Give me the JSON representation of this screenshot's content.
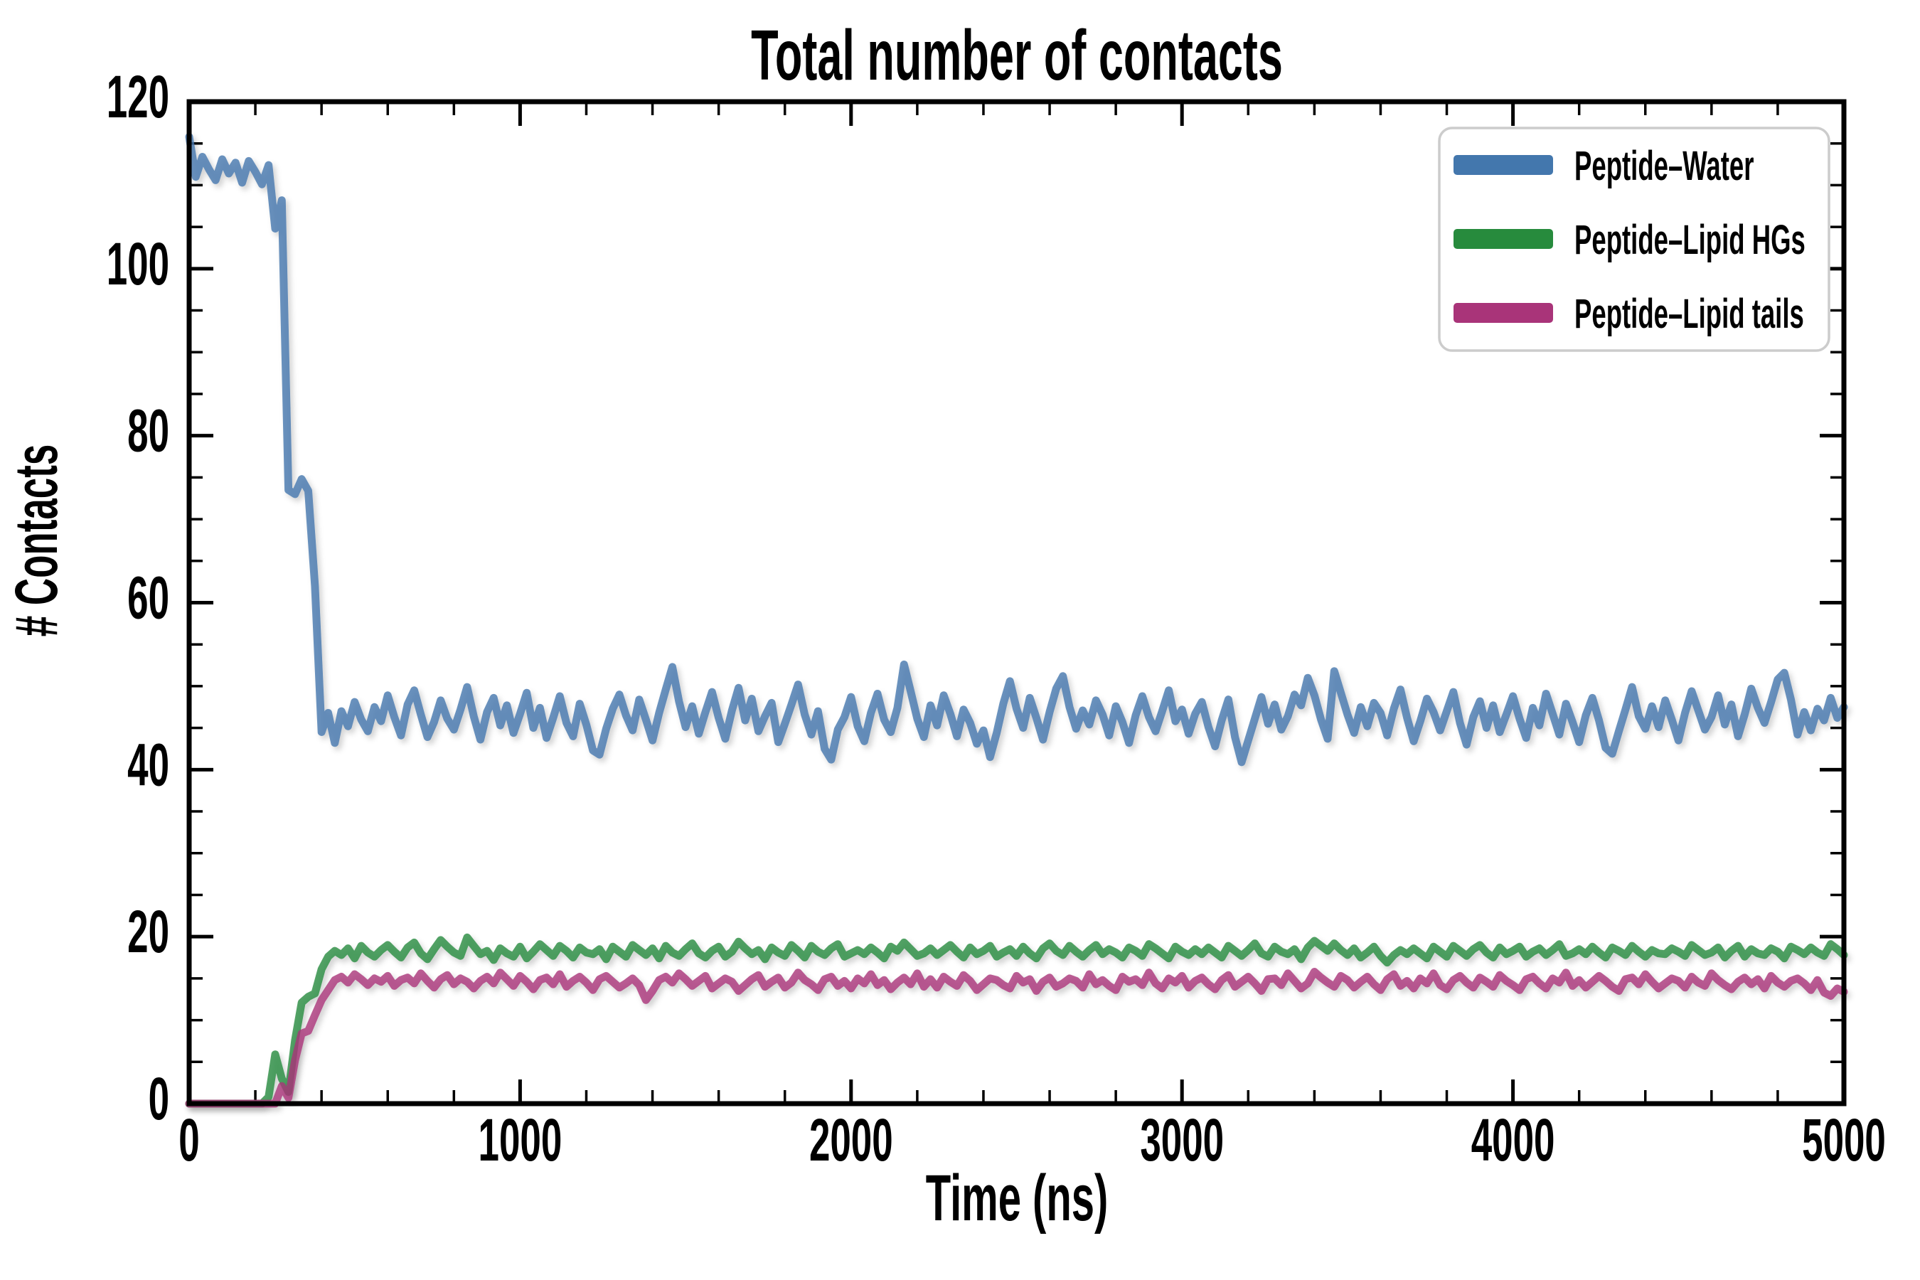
{
  "figure": {
    "title": "Total number of contacts",
    "xlabel": "Time (ns)",
    "ylabel": "# Contacts"
  },
  "chart_data": {
    "type": "line",
    "title": "Total number of contacts",
    "xlabel": "Time (ns)",
    "ylabel": "# Contacts",
    "xlim": [
      0,
      5000
    ],
    "ylim": [
      0,
      120
    ],
    "x_major_ticks": [
      0,
      1000,
      2000,
      3000,
      4000,
      5000
    ],
    "x_minor_step": 200,
    "y_major_ticks": [
      0,
      20,
      40,
      60,
      80,
      100,
      120
    ],
    "y_minor_step": 5,
    "grid": false,
    "legend_position": "upper right",
    "axis_color": "#000000",
    "background": "#ffffff",
    "x_start": 0,
    "x_step": 20,
    "series": [
      {
        "name": "Peptide–Water",
        "color": "#4377ad",
        "values": [
          115.8,
          111.0,
          113.4,
          111.9,
          110.6,
          113.1,
          111.4,
          112.7,
          110.3,
          112.9,
          111.6,
          110.1,
          112.4,
          104.8,
          108.2,
          73.5,
          73.0,
          74.8,
          73.4,
          62.0,
          44.5,
          46.8,
          43.2,
          47.0,
          45.2,
          48.1,
          46.0,
          44.6,
          47.5,
          45.8,
          48.9,
          46.3,
          44.1,
          47.8,
          49.5,
          46.6,
          43.9,
          45.7,
          48.3,
          46.1,
          44.8,
          47.2,
          49.9,
          46.4,
          43.6,
          46.9,
          48.6,
          45.3,
          47.7,
          44.4,
          46.7,
          49.2,
          45.0,
          47.4,
          43.8,
          46.2,
          48.8,
          45.6,
          44.0,
          47.9,
          45.4,
          42.3,
          41.8,
          44.9,
          47.3,
          49.0,
          46.5,
          44.7,
          48.4,
          46.0,
          43.5,
          46.8,
          49.6,
          52.3,
          48.2,
          45.1,
          47.6,
          44.3,
          46.9,
          49.3,
          46.2,
          43.7,
          47.1,
          49.8,
          45.9,
          48.5,
          44.6,
          46.4,
          48.0,
          43.3,
          45.5,
          47.8,
          50.2,
          46.6,
          44.2,
          47.0,
          42.5,
          41.2,
          44.8,
          46.3,
          48.7,
          45.2,
          43.4,
          46.8,
          49.1,
          46.0,
          44.5,
          47.4,
          52.6,
          49.4,
          46.1,
          43.9,
          47.7,
          45.3,
          48.9,
          46.7,
          44.0,
          47.2,
          45.6,
          43.1,
          44.7,
          41.5,
          44.4,
          47.9,
          50.6,
          47.3,
          45.0,
          48.6,
          46.2,
          43.6,
          46.9,
          49.7,
          51.2,
          47.5,
          44.9,
          47.1,
          45.4,
          48.3,
          46.6,
          44.1,
          47.6,
          45.7,
          43.2,
          46.5,
          48.8,
          46.3,
          44.6,
          47.0,
          49.5,
          45.8,
          47.2,
          44.3,
          46.7,
          48.1,
          45.1,
          42.8,
          45.9,
          48.4,
          43.9,
          40.9,
          43.5,
          46.1,
          48.7,
          45.5,
          47.8,
          44.8,
          46.4,
          49.0,
          47.7,
          51.0,
          48.9,
          46.0,
          43.7,
          51.8,
          49.2,
          46.6,
          44.4,
          47.5,
          45.2,
          48.0,
          46.8,
          44.1,
          47.3,
          49.6,
          46.2,
          43.4,
          45.8,
          48.5,
          46.9,
          44.7,
          47.0,
          49.3,
          45.6,
          43.0,
          46.3,
          48.2,
          45.0,
          47.7,
          44.5,
          46.6,
          48.8,
          46.1,
          43.8,
          47.4,
          45.3,
          49.1,
          46.7,
          44.2,
          47.9,
          45.7,
          43.3,
          46.5,
          48.6,
          45.9,
          42.6,
          41.9,
          44.6,
          47.2,
          49.9,
          46.4,
          44.9,
          47.6,
          45.1,
          48.3,
          46.0,
          43.5,
          46.8,
          49.4,
          47.1,
          44.8,
          46.3,
          48.9,
          45.4,
          47.8,
          44.0,
          46.6,
          49.7,
          47.4,
          45.6,
          48.1,
          50.8,
          51.6,
          48.4,
          44.2,
          46.9,
          44.7,
          47.3,
          45.9,
          48.6,
          46.2,
          47.5
        ]
      },
      {
        "name": "Peptide–Lipid HGs",
        "color": "#278b3d",
        "values": [
          0.0,
          0.0,
          0.0,
          0.0,
          0.0,
          0.0,
          0.0,
          0.0,
          0.0,
          0.0,
          0.0,
          0.0,
          0.8,
          5.9,
          3.0,
          1.4,
          7.6,
          12.1,
          12.8,
          13.2,
          16.1,
          17.6,
          18.3,
          17.8,
          18.6,
          17.4,
          18.9,
          18.1,
          17.6,
          18.4,
          19.0,
          18.2,
          17.5,
          18.7,
          19.3,
          18.0,
          17.3,
          18.5,
          19.6,
          18.8,
          18.1,
          17.7,
          19.9,
          18.9,
          17.9,
          18.3,
          17.2,
          18.6,
          18.0,
          17.6,
          18.8,
          17.4,
          18.2,
          19.1,
          18.4,
          17.7,
          18.9,
          18.3,
          17.5,
          18.7,
          18.1,
          17.9,
          18.5,
          17.3,
          18.8,
          18.2,
          17.6,
          19.0,
          18.4,
          17.8,
          18.6,
          17.4,
          18.9,
          18.1,
          17.7,
          18.5,
          19.2,
          18.0,
          17.5,
          18.3,
          18.8,
          17.6,
          18.2,
          19.4,
          18.6,
          17.9,
          18.4,
          17.3,
          18.7,
          18.1,
          17.7,
          19.0,
          18.3,
          17.5,
          18.9,
          18.2,
          17.8,
          18.6,
          19.1,
          17.6,
          18.0,
          18.4,
          17.9,
          18.7,
          18.1,
          17.4,
          18.8,
          18.3,
          19.3,
          18.5,
          17.7,
          18.0,
          18.6,
          17.8,
          18.4,
          19.0,
          18.2,
          17.5,
          18.7,
          17.9,
          18.3,
          18.9,
          17.6,
          18.1,
          18.5,
          17.7,
          18.8,
          18.0,
          17.4,
          18.6,
          19.2,
          18.3,
          17.8,
          18.9,
          18.2,
          17.6,
          18.4,
          19.0,
          17.9,
          18.5,
          18.1,
          17.5,
          18.7,
          18.3,
          17.7,
          19.1,
          18.6,
          18.0,
          17.4,
          18.8,
          18.2,
          17.8,
          18.5,
          17.9,
          18.7,
          18.1,
          17.5,
          18.9,
          18.3,
          17.7,
          18.4,
          19.2,
          18.0,
          17.6,
          18.8,
          18.2,
          17.9,
          18.5,
          17.3,
          18.7,
          19.5,
          18.9,
          18.3,
          19.2,
          18.4,
          17.8,
          18.6,
          17.5,
          18.1,
          18.8,
          17.7,
          16.9,
          17.8,
          18.4,
          17.9,
          18.6,
          18.0,
          17.4,
          18.8,
          18.2,
          17.6,
          18.9,
          18.3,
          17.7,
          18.5,
          19.0,
          18.1,
          17.5,
          18.7,
          17.9,
          18.3,
          18.8,
          17.6,
          18.2,
          18.6,
          17.8,
          18.4,
          19.1,
          17.7,
          18.0,
          18.5,
          17.9,
          18.8,
          18.1,
          17.5,
          18.7,
          18.3,
          17.8,
          18.9,
          18.2,
          17.6,
          18.4,
          18.0,
          17.9,
          18.6,
          18.2,
          17.7,
          19.0,
          18.4,
          17.8,
          18.1,
          18.7,
          17.5,
          18.3,
          18.9,
          17.6,
          18.5,
          18.0,
          17.8,
          18.6,
          18.2,
          17.4,
          18.8,
          18.4,
          17.9,
          18.7,
          18.1,
          17.7,
          19.1,
          18.5,
          17.8
        ]
      },
      {
        "name": "Peptide–Lipid tails",
        "color": "#a93479",
        "values": [
          0.0,
          0.0,
          0.0,
          0.0,
          0.0,
          0.0,
          0.0,
          0.0,
          0.0,
          0.0,
          0.0,
          0.0,
          0.0,
          0.0,
          2.1,
          0.7,
          5.2,
          8.4,
          8.7,
          10.6,
          12.4,
          13.6,
          14.8,
          15.2,
          14.5,
          15.5,
          14.9,
          14.2,
          15.0,
          14.6,
          15.3,
          14.1,
          14.8,
          15.1,
          14.4,
          15.6,
          14.7,
          13.9,
          14.9,
          15.4,
          14.3,
          15.0,
          14.6,
          13.8,
          14.7,
          15.2,
          14.4,
          15.7,
          14.9,
          14.1,
          15.3,
          14.6,
          13.7,
          14.8,
          15.1,
          14.3,
          15.5,
          14.0,
          14.7,
          15.2,
          14.5,
          13.6,
          14.9,
          15.3,
          14.6,
          13.9,
          14.4,
          15.0,
          14.2,
          12.4,
          13.5,
          14.8,
          15.2,
          14.5,
          15.6,
          14.9,
          14.1,
          14.7,
          15.3,
          13.8,
          14.4,
          15.0,
          14.6,
          13.5,
          14.2,
          14.9,
          15.4,
          14.0,
          14.6,
          15.1,
          13.9,
          14.5,
          15.7,
          14.8,
          14.3,
          13.6,
          14.9,
          15.2,
          14.1,
          14.7,
          13.8,
          15.0,
          14.4,
          15.5,
          14.2,
          14.8,
          13.7,
          14.5,
          15.1,
          14.3,
          15.6,
          14.0,
          14.9,
          13.9,
          15.2,
          14.6,
          14.1,
          15.4,
          14.7,
          13.6,
          14.3,
          15.0,
          14.8,
          14.2,
          13.8,
          15.3,
          14.5,
          14.9,
          13.5,
          14.6,
          15.1,
          14.0,
          14.4,
          15.0,
          14.7,
          13.9,
          15.5,
          14.3,
          14.8,
          14.1,
          13.6,
          15.2,
          14.6,
          14.9,
          14.2,
          15.7,
          14.4,
          13.8,
          15.0,
          14.5,
          15.3,
          13.9,
          14.7,
          15.1,
          14.3,
          13.7,
          14.8,
          15.4,
          14.0,
          14.6,
          15.2,
          14.4,
          13.5,
          14.9,
          15.0,
          14.2,
          15.6,
          14.7,
          13.8,
          14.4,
          15.8,
          15.1,
          14.5,
          14.0,
          15.3,
          14.8,
          13.9,
          14.6,
          15.2,
          14.3,
          13.6,
          14.9,
          15.5,
          14.1,
          14.7,
          13.8,
          15.0,
          14.4,
          15.6,
          14.2,
          13.7,
          14.8,
          15.3,
          14.5,
          13.9,
          15.1,
          14.6,
          14.0,
          15.4,
          14.7,
          14.2,
          13.6,
          14.9,
          15.2,
          14.4,
          13.8,
          15.0,
          14.5,
          15.7,
          14.1,
          14.8,
          13.9,
          14.6,
          15.3,
          14.7,
          14.0,
          13.5,
          14.9,
          15.1,
          14.3,
          15.5,
          14.6,
          13.8,
          14.4,
          15.0,
          14.7,
          13.9,
          15.2,
          14.5,
          14.1,
          15.6,
          14.8,
          14.2,
          13.7,
          14.6,
          15.1,
          14.3,
          14.9,
          13.8,
          15.3,
          14.5,
          14.0,
          14.7,
          15.0,
          14.4,
          13.6,
          14.8,
          13.3,
          12.9,
          13.8,
          13.4
        ]
      }
    ]
  }
}
